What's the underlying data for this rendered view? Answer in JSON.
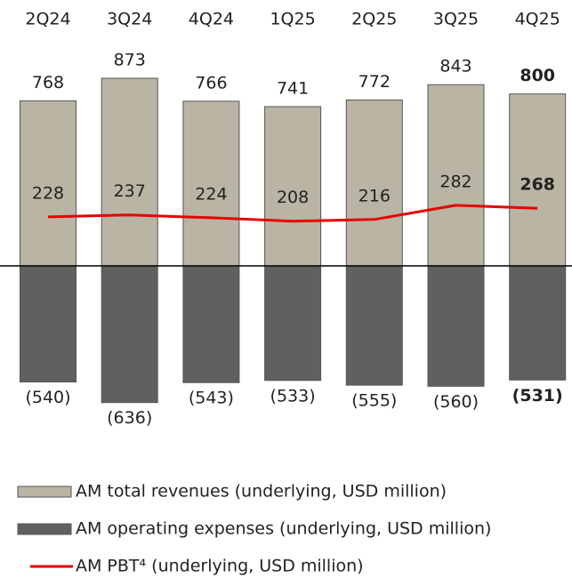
{
  "chart_data": {
    "type": "bar",
    "categories": [
      "2Q24",
      "3Q24",
      "4Q24",
      "1Q25",
      "2Q25",
      "3Q25",
      "4Q25"
    ],
    "series": [
      {
        "name": "AM total revenues (underlying, USD million)",
        "color": "#bab4a4",
        "type": "bar",
        "values": [
          768,
          873,
          766,
          741,
          772,
          843,
          800
        ]
      },
      {
        "name": "AM operating expenses (underlying, USD million)",
        "color": "#5f615e",
        "type": "bar",
        "values": [
          -540,
          -636,
          -543,
          -533,
          -555,
          -560,
          -531
        ],
        "value_labels": [
          "(540)",
          "(636)",
          "(543)",
          "(533)",
          "(555)",
          "(560)",
          "(531)"
        ]
      },
      {
        "name": "AM PBT⁴ (underlying, USD million)",
        "color": "#e60000",
        "type": "line",
        "values": [
          228,
          237,
          224,
          208,
          216,
          282,
          268
        ]
      }
    ]
  }
}
